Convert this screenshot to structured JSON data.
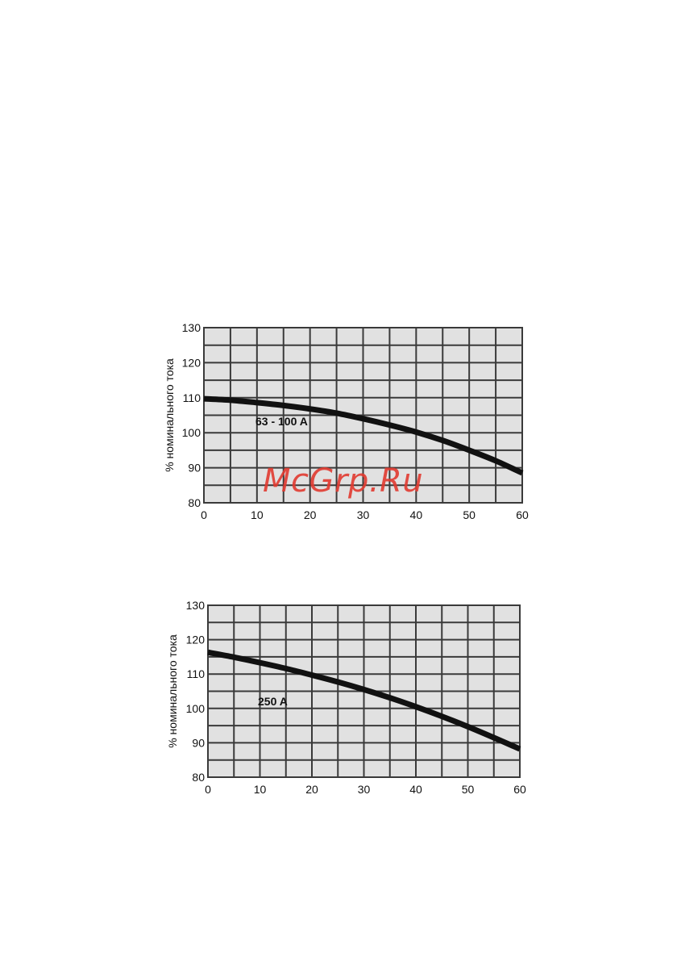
{
  "watermark": {
    "text": "McGrp.Ru"
  },
  "chart_data": [
    {
      "type": "line",
      "title": "",
      "xlabel": "",
      "ylabel": "% номинального тока",
      "xlim": [
        0,
        60
      ],
      "ylim": [
        80,
        130
      ],
      "x_ticks": [
        "0",
        "10",
        "20",
        "30",
        "40",
        "50",
        "60"
      ],
      "y_ticks": [
        "80",
        "90",
        "100",
        "110",
        "120",
        "130"
      ],
      "grid": true,
      "series": [
        {
          "name": "63 - 100 A",
          "x": [
            0,
            5,
            10,
            15,
            20,
            25,
            30,
            35,
            40,
            45,
            50,
            55,
            60
          ],
          "y": [
            109.7,
            109.3,
            108.6,
            107.8,
            106.8,
            105.6,
            104.0,
            102.2,
            100.2,
            97.8,
            95.0,
            92.0,
            88.5
          ]
        }
      ]
    },
    {
      "type": "line",
      "title": "",
      "xlabel": "",
      "ylabel": "% номинального тока",
      "xlim": [
        0,
        60
      ],
      "ylim": [
        80,
        130
      ],
      "x_ticks": [
        "0",
        "10",
        "20",
        "30",
        "40",
        "50",
        "60"
      ],
      "y_ticks": [
        "80",
        "90",
        "100",
        "110",
        "120",
        "130"
      ],
      "grid": true,
      "series": [
        {
          "name": "250 A",
          "x": [
            0,
            5,
            10,
            15,
            20,
            25,
            30,
            35,
            40,
            45,
            50,
            55,
            60
          ],
          "y": [
            116.3,
            114.9,
            113.3,
            111.6,
            109.7,
            107.7,
            105.5,
            103.1,
            100.5,
            97.7,
            94.7,
            91.5,
            88.2
          ]
        }
      ]
    }
  ]
}
